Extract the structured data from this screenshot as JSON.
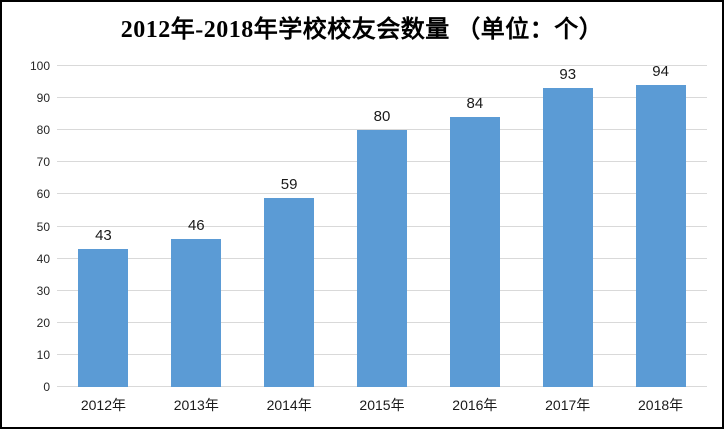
{
  "title": "2012年-2018年学校校友会数量 （单位：个）",
  "colors": {
    "bar": "#5b9bd5",
    "gridline": "#d9d9d9",
    "axis_text": "#262626",
    "data_label_text": "#1a1a1a",
    "title_text": "#000000",
    "border": "#000000",
    "background": "#ffffff"
  },
  "chart_data": {
    "type": "bar",
    "title": "2012年-2018年学校校友会数量 （单位：个）",
    "categories": [
      "2012年",
      "2013年",
      "2014年",
      "2015年",
      "2016年",
      "2017年",
      "2018年"
    ],
    "values": [
      43,
      46,
      59,
      80,
      84,
      93,
      94
    ],
    "xlabel": "",
    "ylabel": "",
    "ylim": [
      0,
      100
    ],
    "y_ticks": [
      0,
      10,
      20,
      30,
      40,
      50,
      60,
      70,
      80,
      90,
      100
    ],
    "grid": "horizontal-only",
    "legend": "none",
    "data_labels": true
  }
}
